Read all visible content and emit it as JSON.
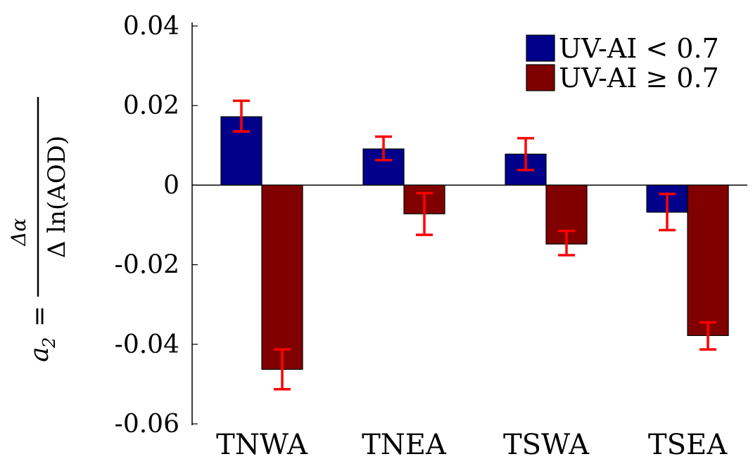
{
  "chart_data": {
    "type": "bar",
    "categories": [
      "TNWA",
      "TNEA",
      "TSWA",
      "TSEA"
    ],
    "series": [
      {
        "name": "UV-AI < 0.7",
        "color": "#00008B",
        "values": [
          0.0172,
          0.0091,
          0.0078,
          -0.0068
        ],
        "err_low": [
          0.0135,
          0.0063,
          0.0038,
          -0.0113
        ],
        "err_high": [
          0.0212,
          0.0122,
          0.0118,
          -0.0022
        ]
      },
      {
        "name": "UV-AI ≥ 0.7",
        "color": "#800000",
        "values": [
          -0.0463,
          -0.0072,
          -0.0148,
          -0.0378
        ],
        "err_low": [
          -0.0513,
          -0.0125,
          -0.0176,
          -0.0413
        ],
        "err_high": [
          -0.0413,
          -0.002,
          -0.0115,
          -0.0345
        ]
      }
    ],
    "error_bar_color": "#FF0000",
    "ylim": [
      -0.06,
      0.04
    ],
    "yticks": [
      0.04,
      0.02,
      0,
      -0.02,
      -0.04,
      -0.06
    ],
    "ytick_labels": [
      "0.04",
      "0.02",
      "0",
      "-0.02",
      "-0.04",
      "-0.06"
    ],
    "ylabel": {
      "lhs": "a",
      "lhs_sub": "2",
      "equals": "=",
      "numerator": "Δα",
      "denominator": "Δ ln(AOD)"
    },
    "legend": {
      "position": "top-right",
      "entries": [
        "UV-AI < 0.7",
        "UV-AI ≥ 0.7"
      ]
    },
    "baseline": 0,
    "grid": false
  }
}
